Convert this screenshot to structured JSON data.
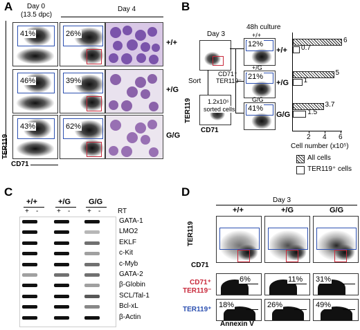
{
  "panelA": {
    "label": "A",
    "day0_label": "Day 0",
    "day0_sub": "(13.5 dpc)",
    "day4_label": "Day 4",
    "yaxis": "TER119",
    "xaxis": "CD71",
    "rows": [
      {
        "genotype": "+/+",
        "pct_day0": "41%",
        "pct_day4": "26%"
      },
      {
        "genotype": "+/G",
        "pct_day0": "46%",
        "pct_day4": "39%"
      },
      {
        "genotype": "G/G",
        "pct_day0": "43%",
        "pct_day4": "62%"
      }
    ]
  },
  "panelB": {
    "label": "B",
    "day3": "Day 3",
    "culture": "48h culture",
    "sort": "Sort",
    "cd71_ter": "CD71⁺",
    "ter_neg": "TER119⁻",
    "sorted_count": "1.2x10⁵",
    "sorted_label": "sorted cells",
    "yaxis": "TER119",
    "xaxis": "CD71",
    "bar_axis_label": "Cell number (x10⁵)",
    "bar_ticks": [
      "2",
      "4",
      "6"
    ],
    "legend_all": "All cells",
    "legend_ter": "TER119⁺ cells",
    "rows": [
      {
        "genotype": "+/+",
        "pct": "12%",
        "all_label": "6",
        "ter_label": "0.7",
        "all": 6,
        "ter": 0.7
      },
      {
        "genotype": "+/G",
        "pct": "21%",
        "all_label": "5",
        "ter_label": "1",
        "all": 5,
        "ter": 1
      },
      {
        "genotype": "G/G",
        "pct": "41%",
        "all_label": "3.7",
        "ter_label": "1.5",
        "all": 3.7,
        "ter": 1.5
      }
    ]
  },
  "panelC": {
    "label": "C",
    "genotypes": [
      "+/+",
      "+/G",
      "G/G"
    ],
    "rt_label": "RT",
    "plus": "+",
    "minus": "-",
    "genes": [
      "GATA-1",
      "LMO2",
      "EKLF",
      "c-Kit",
      "c-Myb",
      "GATA-2",
      "β-Globin",
      "SCL/Tal-1",
      "Bcl-xL",
      "β-Actin"
    ]
  },
  "panelD": {
    "label": "D",
    "day3": "Day 3",
    "genotypes": [
      "+/+",
      "+/G",
      "G/G"
    ],
    "yaxis": "TER119",
    "xaxis": "CD71",
    "row1_label_a": "CD71⁺",
    "row1_label_b": "TER119⁻",
    "row2_label": "TER119⁺",
    "annexin": "Annexin V",
    "row1_pcts": [
      "6%",
      "11%",
      "31%"
    ],
    "row2_pcts": [
      "18%",
      "26%",
      "49%"
    ]
  }
}
